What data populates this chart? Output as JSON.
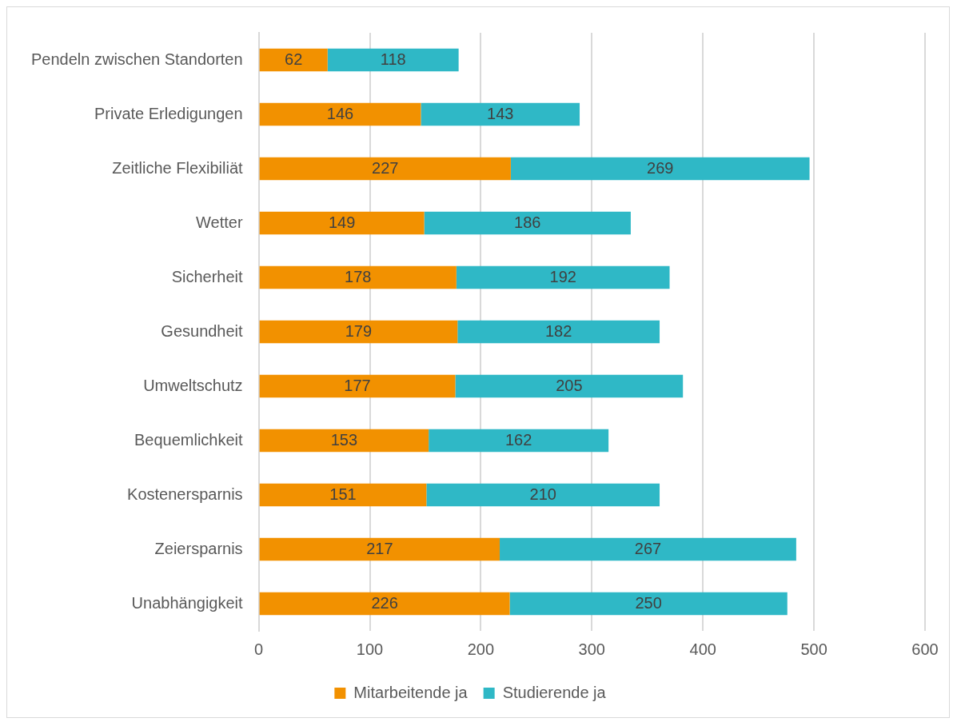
{
  "chart_data": {
    "type": "bar",
    "orientation": "horizontal",
    "stacked": true,
    "categories": [
      "Pendeln zwischen Standorten",
      "Private Erledigungen",
      "Zeitliche Flexibiliät",
      "Wetter",
      "Sicherheit",
      "Gesundheit",
      "Umweltschutz",
      "Bequemlichkeit",
      "Kostenersparnis",
      "Zeiersparnis",
      "Unabhängigkeit"
    ],
    "series": [
      {
        "name": "Mitarbeitende ja",
        "color": "#f29100",
        "values": [
          62,
          146,
          227,
          149,
          178,
          179,
          177,
          153,
          151,
          217,
          226
        ]
      },
      {
        "name": "Studierende ja",
        "color": "#2fb8c6",
        "values": [
          118,
          143,
          269,
          186,
          192,
          182,
          205,
          162,
          210,
          267,
          250
        ]
      }
    ],
    "xlim": [
      0,
      600
    ],
    "xticks": [
      0,
      100,
      200,
      300,
      400,
      500,
      600
    ],
    "grid": "x",
    "legend": "bottom",
    "data_labels": true
  }
}
